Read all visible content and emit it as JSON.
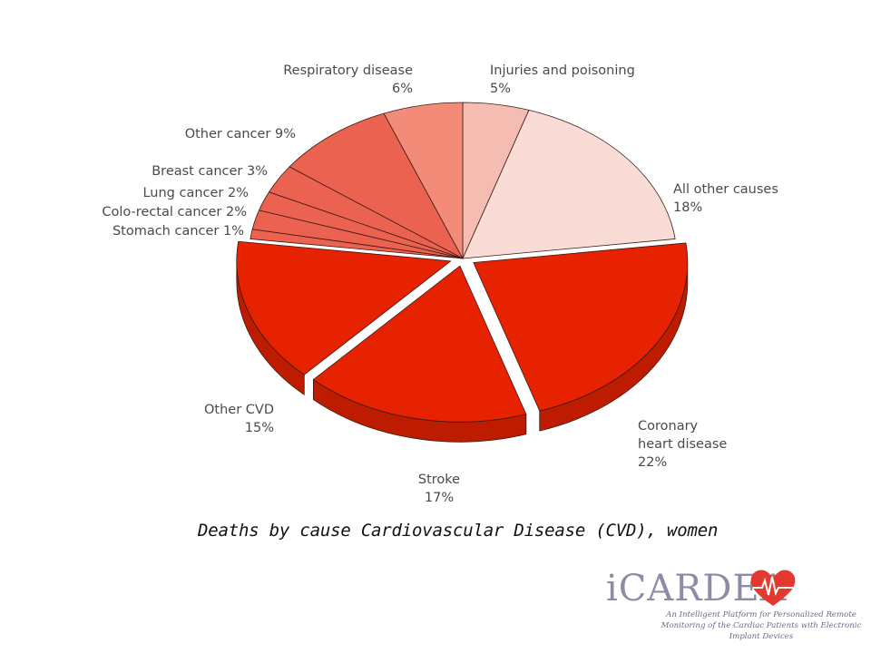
{
  "chart_data": {
    "type": "pie",
    "title": "",
    "slices": [
      {
        "label": "Injuries and poisoning",
        "value": 5,
        "display": "5%",
        "color": "#f5bdb2"
      },
      {
        "label": "All other causes",
        "value": 18,
        "display": "18%",
        "color": "#fadcd7"
      },
      {
        "label": "Coronary heart disease",
        "value": 22,
        "display": "22%",
        "color": "#e62200"
      },
      {
        "label": "Stroke",
        "value": 17,
        "display": "17%",
        "color": "#e62200"
      },
      {
        "label": "Other CVD",
        "value": 15,
        "display": "15%",
        "color": "#e62200"
      },
      {
        "label": "Stomach cancer",
        "value": 1,
        "display": "1%",
        "color": "#ec6250"
      },
      {
        "label": "Colo-rectal cancer",
        "value": 2,
        "display": "2%",
        "color": "#ec6250"
      },
      {
        "label": "Lung cancer",
        "value": 2,
        "display": "2%",
        "color": "#ec6250"
      },
      {
        "label": "Breast cancer",
        "value": 3,
        "display": "3%",
        "color": "#ec6250"
      },
      {
        "label": "Other cancer",
        "value": 9,
        "display": "9%",
        "color": "#ec6250"
      },
      {
        "label": "Respiratory disease",
        "value": 6,
        "display": "6%",
        "color": "#f28c78"
      }
    ],
    "exploded": [
      "Coronary heart disease",
      "Stroke",
      "Other CVD"
    ],
    "start": "12 o'clock, clockwise",
    "style": "3d-tilted"
  },
  "caption": "Deaths by cause Cardiovascular Disease (CVD), women",
  "logo": {
    "name": "iCARDEA",
    "tagline": "An Intelligent Platform for Personalized Remote Monitoring of the Cardiac Patients with Electronic Implant Devices",
    "heart_color": "#e23a2e"
  }
}
